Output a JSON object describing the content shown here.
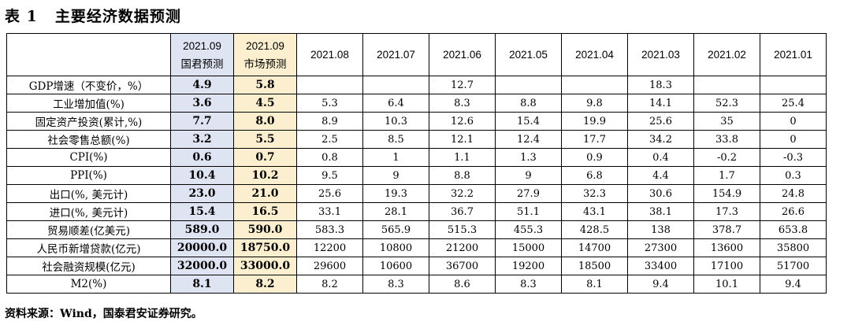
{
  "title": {
    "label": "表 1",
    "text": "主要经济数据预测"
  },
  "header": {
    "gtja": {
      "period": "2021.09",
      "name": "国君预测"
    },
    "market": {
      "period": "2021.09",
      "name": "市场预测"
    },
    "months": [
      "2021.08",
      "2021.07",
      "2021.06",
      "2021.05",
      "2021.04",
      "2021.03",
      "2021.02",
      "2021.01"
    ]
  },
  "rows": [
    {
      "label": "GDP增速（不变价，%）",
      "gtja": "4.9",
      "market": "5.8",
      "values": [
        "",
        "",
        "12.7",
        "",
        "",
        "18.3",
        "",
        ""
      ]
    },
    {
      "label": "工业增加值(%)",
      "gtja": "3.6",
      "market": "4.5",
      "values": [
        "5.3",
        "6.4",
        "8.3",
        "8.8",
        "9.8",
        "14.1",
        "52.3",
        "25.4"
      ]
    },
    {
      "label": "固定资产投资(累计,%)",
      "gtja": "7.7",
      "market": "8.0",
      "values": [
        "8.9",
        "10.3",
        "12.6",
        "15.4",
        "19.9",
        "25.6",
        "35",
        "0"
      ]
    },
    {
      "label": "社会零售总额(%)",
      "gtja": "3.2",
      "market": "5.5",
      "values": [
        "2.5",
        "8.5",
        "12.1",
        "12.4",
        "17.7",
        "34.2",
        "33.8",
        "0"
      ]
    },
    {
      "label": "CPI(%)",
      "gtja": "0.6",
      "market": "0.7",
      "values": [
        "0.8",
        "1",
        "1.1",
        "1.3",
        "0.9",
        "0.4",
        "-0.2",
        "-0.3"
      ]
    },
    {
      "label": "PPI(%)",
      "gtja": "10.4",
      "market": "10.2",
      "values": [
        "9.5",
        "9",
        "8.8",
        "9",
        "6.8",
        "4.4",
        "1.7",
        "0.3"
      ]
    },
    {
      "label": "出口(%, 美元计)",
      "gtja": "23.0",
      "market": "21.0",
      "values": [
        "25.6",
        "19.3",
        "32.2",
        "27.9",
        "32.3",
        "30.6",
        "154.9",
        "24.8"
      ]
    },
    {
      "label": "进口(%, 美元计)",
      "gtja": "15.4",
      "market": "16.5",
      "values": [
        "33.1",
        "28.1",
        "36.7",
        "51.1",
        "43.1",
        "38.1",
        "17.3",
        "26.6"
      ]
    },
    {
      "label": "贸易顺差(亿美元)",
      "gtja": "589.0",
      "market": "590.0",
      "values": [
        "583.3",
        "565.9",
        "515.3",
        "455.3",
        "428.5",
        "138",
        "378.7",
        "653.8"
      ]
    },
    {
      "label": "人民币新增贷款(亿元)",
      "gtja": "20000.0",
      "market": "18750.0",
      "values": [
        "12200",
        "10800",
        "21200",
        "15000",
        "14700",
        "27300",
        "13600",
        "35800"
      ]
    },
    {
      "label": "社会融资规模(亿元)",
      "gtja": "32000.0",
      "market": "33000.0",
      "values": [
        "29600",
        "10600",
        "36700",
        "19200",
        "18500",
        "33400",
        "17100",
        "51700"
      ]
    },
    {
      "label": "M2(%)",
      "gtja": "8.1",
      "market": "8.2",
      "values": [
        "8.2",
        "8.3",
        "8.6",
        "8.3",
        "8.1",
        "9.4",
        "10.1",
        "9.4"
      ]
    }
  ],
  "footer": "资料来源：Wind，国泰君安证券研究。"
}
